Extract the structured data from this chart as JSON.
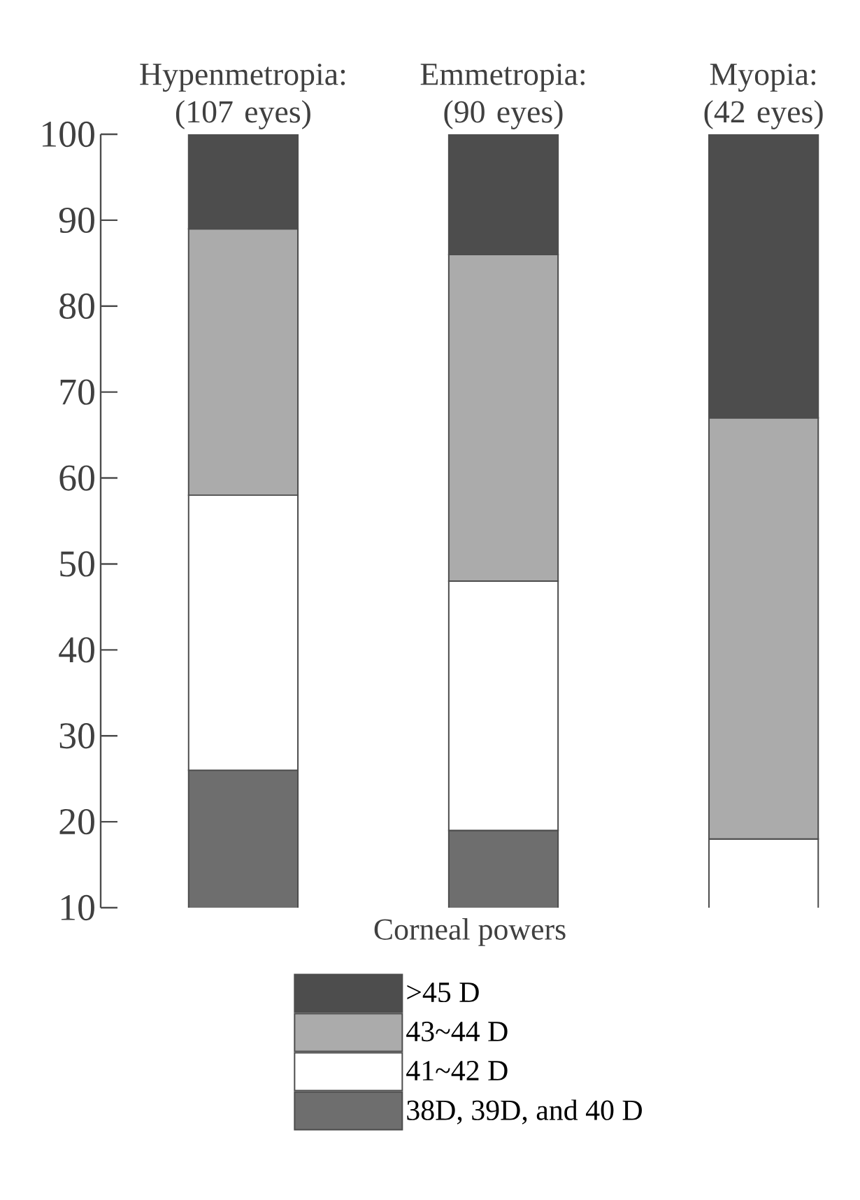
{
  "chart_data": {
    "type": "bar",
    "stacked": true,
    "categories": [
      "Hypenmetropia: (107 eyes)",
      "Emmetropia: (90 eyes)",
      "Myopia: (42 eyes)"
    ],
    "series": [
      {
        "name": "38D, 39D, and 40 D",
        "color": "#6e6e6e",
        "values": [
          26,
          19,
          null
        ]
      },
      {
        "name": "41~42 D",
        "color": "#ffffff",
        "values": [
          32,
          29,
          18
        ]
      },
      {
        "name": "43~44 D",
        "color": "#ababab",
        "values": [
          31,
          38,
          49
        ]
      },
      {
        "name": ">45 D",
        "color": "#4d4d4d",
        "values": [
          11,
          14,
          33
        ]
      }
    ],
    "ylim": [
      10,
      100
    ],
    "yticks": [
      10,
      20,
      30,
      40,
      50,
      60,
      70,
      80,
      90,
      100
    ],
    "legend": "bottom",
    "legend_title": "Corneal powers",
    "grid": false
  }
}
